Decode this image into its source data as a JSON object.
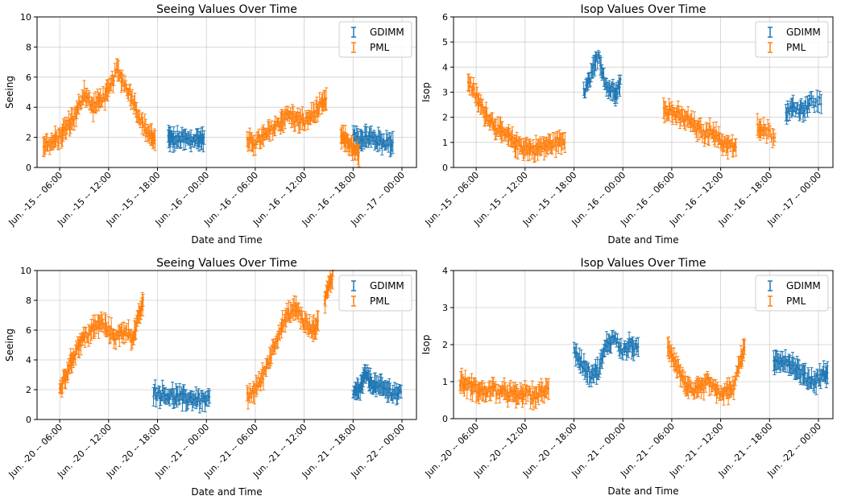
{
  "colors": {
    "gdimm": "#1f77b4",
    "pml": "#ff7f0e",
    "grid": "#b0b0b0"
  },
  "chart_data": [
    {
      "type": "scatter",
      "title": "Seeing Values Over Time",
      "xlabel": "Date and Time",
      "ylabel": "Seeing",
      "ylim": [
        0,
        10
      ],
      "yticks": [
        "0",
        "2",
        "4",
        "6",
        "8",
        "10"
      ],
      "xticks": [
        "Jun. -15 -- 06:00",
        "Jun. -15 -- 12:00",
        "Jun. -15 -- 18:00",
        "Jun. -16 -- 00:00",
        "Jun. -16 -- 06:00",
        "Jun. -16 -- 12:00",
        "Jun. -16 -- 18:00",
        "Jun. -17 -- 00:00"
      ],
      "grid": true,
      "legend": "top-right",
      "series": [
        {
          "name": "GDIMM",
          "color": "#1f77b4",
          "segments": [
            [
              [
                19.3,
                2.0
              ],
              [
                20.0,
                1.8
              ],
              [
                21.0,
                1.9
              ],
              [
                22.0,
                1.8
              ],
              [
                23.0,
                1.9
              ],
              [
                23.8,
                1.9
              ]
            ],
            [
              [
                42.0,
                2.0
              ],
              [
                43.0,
                1.9
              ],
              [
                44.0,
                2.0
              ],
              [
                45.0,
                1.8
              ],
              [
                46.0,
                1.7
              ],
              [
                47.0,
                1.6
              ]
            ]
          ]
        },
        {
          "name": "PML",
          "color": "#ff7f0e",
          "segments": [
            [
              [
                4.0,
                1.5
              ],
              [
                5.0,
                1.6
              ],
              [
                6.0,
                2.0
              ],
              [
                7.0,
                2.8
              ],
              [
                8.0,
                3.5
              ],
              [
                9.0,
                5.0
              ],
              [
                10.0,
                4.0
              ],
              [
                11.0,
                4.5
              ],
              [
                12.0,
                5.0
              ],
              [
                13.0,
                6.5
              ],
              [
                14.0,
                5.5
              ],
              [
                15.0,
                4.5
              ],
              [
                16.0,
                3.0
              ],
              [
                17.0,
                2.2
              ],
              [
                17.8,
                1.8
              ]
            ],
            [
              [
                29.0,
                1.6
              ],
              [
                30.0,
                1.7
              ],
              [
                31.0,
                2.0
              ],
              [
                32.0,
                2.5
              ],
              [
                33.0,
                3.0
              ],
              [
                34.0,
                3.5
              ],
              [
                35.0,
                3.2
              ],
              [
                36.0,
                3.0
              ],
              [
                37.0,
                3.5
              ],
              [
                38.0,
                4.0
              ],
              [
                38.8,
                4.5
              ]
            ],
            [
              [
                40.5,
                2.0
              ],
              [
                41.2,
                1.8
              ],
              [
                42.0,
                1.2
              ],
              [
                42.8,
                0.7
              ]
            ]
          ]
        }
      ]
    },
    {
      "type": "scatter",
      "title": "Isop Values Over Time",
      "xlabel": "Date and Time",
      "ylabel": "Isop",
      "ylim": [
        0,
        6
      ],
      "yticks": [
        "0",
        "1",
        "2",
        "3",
        "4",
        "5",
        "6"
      ],
      "xticks": [
        "Jun. -15 -- 06:00",
        "Jun. -15 -- 12:00",
        "Jun. -15 -- 18:00",
        "Jun. -16 -- 00:00",
        "Jun. -16 -- 06:00",
        "Jun. -16 -- 12:00",
        "Jun. -16 -- 18:00",
        "Jun. -17 -- 00:00"
      ],
      "grid": true,
      "legend": "top-right",
      "series": [
        {
          "name": "GDIMM",
          "color": "#1f77b4",
          "segments": [
            [
              [
                19.2,
                3.0
              ],
              [
                20.0,
                3.5
              ],
              [
                21.0,
                4.5
              ],
              [
                22.0,
                3.2
              ],
              [
                23.0,
                3.0
              ],
              [
                23.8,
                3.4
              ]
            ],
            [
              [
                44.0,
                2.2
              ],
              [
                45.0,
                2.4
              ],
              [
                46.0,
                2.3
              ],
              [
                47.0,
                2.6
              ],
              [
                48.5,
                2.6
              ]
            ]
          ]
        },
        {
          "name": "PML",
          "color": "#ff7f0e",
          "segments": [
            [
              [
                5.0,
                3.5
              ],
              [
                6.0,
                2.8
              ],
              [
                7.0,
                2.2
              ],
              [
                8.0,
                1.8
              ],
              [
                9.0,
                1.4
              ],
              [
                10.0,
                1.2
              ],
              [
                11.0,
                0.9
              ],
              [
                12.0,
                0.8
              ],
              [
                13.0,
                0.7
              ],
              [
                14.0,
                0.8
              ],
              [
                15.0,
                0.9
              ],
              [
                16.0,
                1.0
              ],
              [
                17.0,
                1.1
              ]
            ],
            [
              [
                29.0,
                2.4
              ],
              [
                30.0,
                2.2
              ],
              [
                31.0,
                2.0
              ],
              [
                32.0,
                1.9
              ],
              [
                33.0,
                1.6
              ],
              [
                34.0,
                1.3
              ],
              [
                35.0,
                1.5
              ],
              [
                36.0,
                1.0
              ],
              [
                37.0,
                0.9
              ],
              [
                38.0,
                0.7
              ]
            ],
            [
              [
                40.5,
                1.6
              ],
              [
                41.5,
                1.4
              ],
              [
                42.8,
                1.3
              ]
            ]
          ]
        }
      ]
    },
    {
      "type": "scatter",
      "title": "Seeing Values Over Time",
      "xlabel": "Date and Time",
      "ylabel": "Seeing",
      "ylim": [
        0,
        10
      ],
      "yticks": [
        "0",
        "2",
        "4",
        "6",
        "8",
        "10"
      ],
      "xticks": [
        "Jun. -20 -- 06:00",
        "Jun. -20 -- 12:00",
        "Jun. -20 -- 18:00",
        "Jun. -21 -- 00:00",
        "Jun. -21 -- 06:00",
        "Jun. -21 -- 12:00",
        "Jun. -21 -- 18:00",
        "Jun. -22 -- 00:00"
      ],
      "grid": true,
      "legend": "top-right",
      "series": [
        {
          "name": "GDIMM",
          "color": "#1f77b4",
          "segments": [
            [
              [
                17.5,
                1.8
              ],
              [
                18.5,
                1.7
              ],
              [
                19.5,
                1.6
              ],
              [
                20.5,
                1.5
              ],
              [
                21.5,
                1.4
              ],
              [
                22.5,
                1.4
              ],
              [
                23.5,
                1.3
              ],
              [
                24.5,
                1.3
              ]
            ],
            [
              [
                42.0,
                1.7
              ],
              [
                42.8,
                2.0
              ],
              [
                43.5,
                3.0
              ],
              [
                44.2,
                2.5
              ],
              [
                45.0,
                2.2
              ],
              [
                46.0,
                2.0
              ],
              [
                47.0,
                1.8
              ],
              [
                48.0,
                1.7
              ]
            ]
          ]
        },
        {
          "name": "PML",
          "color": "#ff7f0e",
          "segments": [
            [
              [
                6.0,
                2.0
              ],
              [
                6.8,
                3.0
              ],
              [
                7.5,
                4.0
              ],
              [
                8.3,
                5.0
              ],
              [
                9.0,
                5.5
              ],
              [
                10.0,
                6.0
              ],
              [
                11.0,
                6.5
              ],
              [
                12.0,
                6.0
              ],
              [
                13.0,
                5.5
              ],
              [
                14.0,
                6.0
              ],
              [
                15.0,
                5.5
              ],
              [
                15.8,
                7.0
              ],
              [
                16.3,
                8.0
              ]
            ],
            [
              [
                29.0,
                1.5
              ],
              [
                30.0,
                2.0
              ],
              [
                31.0,
                3.0
              ],
              [
                32.0,
                4.5
              ],
              [
                33.0,
                6.0
              ],
              [
                34.0,
                7.0
              ],
              [
                35.0,
                7.5
              ],
              [
                36.0,
                6.5
              ],
              [
                37.0,
                6.0
              ],
              [
                37.8,
                6.5
              ]
            ],
            [
              [
                38.5,
                8.0
              ],
              [
                39.0,
                9.0
              ],
              [
                39.6,
                9.8
              ]
            ]
          ]
        }
      ]
    },
    {
      "type": "scatter",
      "title": "Isop Values Over Time",
      "xlabel": "Date and Time",
      "ylabel": "Isop",
      "ylim": [
        0,
        4
      ],
      "yticks": [
        "0",
        "1",
        "2",
        "3",
        "4"
      ],
      "xticks": [
        "Jun. -20 -- 06:00",
        "Jun. -20 -- 12:00",
        "Jun. -20 -- 18:00",
        "Jun. -21 -- 00:00",
        "Jun. -21 -- 06:00",
        "Jun. -21 -- 12:00",
        "Jun. -21 -- 18:00",
        "Jun. -22 -- 00:00"
      ],
      "grid": true,
      "legend": "top-right",
      "series": [
        {
          "name": "GDIMM",
          "color": "#1f77b4",
          "segments": [
            [
              [
                18.0,
                1.8
              ],
              [
                19.0,
                1.5
              ],
              [
                20.0,
                1.2
              ],
              [
                21.0,
                1.3
              ],
              [
                22.0,
                2.0
              ],
              [
                23.0,
                2.2
              ],
              [
                24.0,
                1.8
              ],
              [
                25.0,
                2.0
              ],
              [
                26.0,
                1.8
              ]
            ],
            [
              [
                42.5,
                1.5
              ],
              [
                43.5,
                1.6
              ],
              [
                44.5,
                1.5
              ],
              [
                45.5,
                1.3
              ],
              [
                46.5,
                1.1
              ],
              [
                47.5,
                1.0
              ],
              [
                48.5,
                1.2
              ],
              [
                49.2,
                1.2
              ]
            ]
          ]
        },
        {
          "name": "PML",
          "color": "#ff7f0e",
          "segments": [
            [
              [
                4.0,
                1.0
              ],
              [
                5.0,
                0.9
              ],
              [
                6.0,
                0.8
              ],
              [
                7.0,
                0.7
              ],
              [
                8.0,
                0.8
              ],
              [
                9.0,
                0.7
              ],
              [
                10.0,
                0.7
              ],
              [
                11.0,
                0.6
              ],
              [
                12.0,
                0.7
              ],
              [
                13.0,
                0.6
              ],
              [
                14.0,
                0.7
              ],
              [
                15.0,
                0.8
              ]
            ],
            [
              [
                29.5,
                2.0
              ],
              [
                30.5,
                1.5
              ],
              [
                31.5,
                1.0
              ],
              [
                32.5,
                0.7
              ],
              [
                33.5,
                0.8
              ],
              [
                34.5,
                1.0
              ],
              [
                35.5,
                0.7
              ],
              [
                36.5,
                0.7
              ],
              [
                37.5,
                0.8
              ],
              [
                38.5,
                1.6
              ],
              [
                39.0,
                2.0
              ]
            ]
          ]
        }
      ]
    }
  ]
}
